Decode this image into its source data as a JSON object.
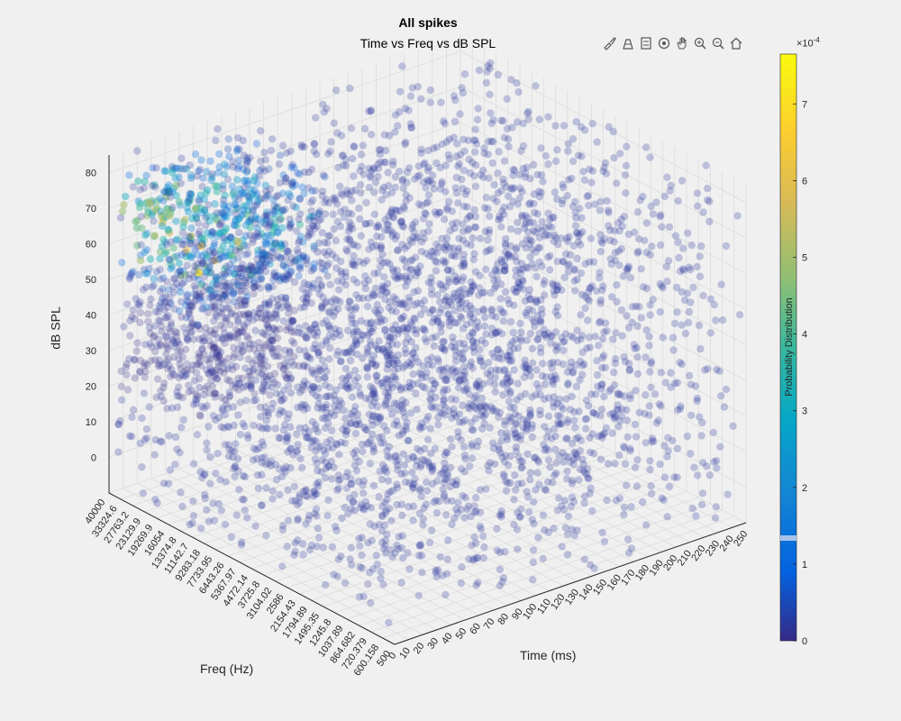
{
  "figure": {
    "title": "All spikes",
    "subtitle": "Time vs Freq vs dB SPL"
  },
  "toolbar": {
    "icons": [
      "brush-data-icon",
      "insert-colorbar-icon",
      "insert-legend-icon",
      "rotate-3d-icon",
      "pan-icon",
      "zoom-in-icon",
      "zoom-out-icon",
      "home-icon"
    ]
  },
  "colorbar": {
    "label": "Probability Distribution",
    "exponent_base": "×10",
    "exponent_power": "-4",
    "ticks": [
      "0",
      "1",
      "2",
      "3",
      "4",
      "5",
      "6",
      "7"
    ],
    "range": [
      0,
      7.65
    ],
    "colormap": "parula"
  },
  "chart_data": {
    "type": "scatter",
    "projection": "3d",
    "title": "All spikes",
    "subtitle": "Time vs Freq vs dB SPL",
    "xlabel": "Time (ms)",
    "ylabel": "Freq (Hz)",
    "zlabel": "dB SPL",
    "x_ticks": [
      "0",
      "10",
      "20",
      "30",
      "40",
      "50",
      "60",
      "70",
      "80",
      "90",
      "100",
      "110",
      "120",
      "130",
      "140",
      "150",
      "160",
      "170",
      "180",
      "190",
      "200",
      "210",
      "220",
      "230",
      "240",
      "250"
    ],
    "y_ticks": [
      "500",
      "600.158",
      "720.379",
      "864.682",
      "1037.89",
      "1245.8",
      "1495.35",
      "1794.89",
      "2154.43",
      "2586",
      "3104.02",
      "3725.8",
      "4472.14",
      "5367.97",
      "6443.26",
      "7733.95",
      "9283.18",
      "11142.7",
      "13374.8",
      "16054",
      "19269.9",
      "23129.9",
      "27763.2",
      "33324.6",
      "40000"
    ],
    "z_ticks": [
      "0",
      "10",
      "20",
      "30",
      "40",
      "50",
      "60",
      "70",
      "80"
    ],
    "xlim": [
      0,
      250
    ],
    "ylim": [
      500,
      40000
    ],
    "zlim": [
      -10,
      85
    ],
    "y_scale": "log",
    "grid": true,
    "point_alpha": 0.25,
    "marker": "filled-circle",
    "color_by": "Probability Distribution",
    "clusters": [
      {
        "time": [
          0,
          90
        ],
        "freq": [
          9283.18,
          40000
        ],
        "db": [
          20,
          80
        ],
        "probability_peak": 0.00075
      },
      {
        "time": [
          0,
          250
        ],
        "freq": [
          500,
          40000
        ],
        "db": [
          -10,
          85
        ],
        "probability_peak": 2e-05
      }
    ]
  }
}
